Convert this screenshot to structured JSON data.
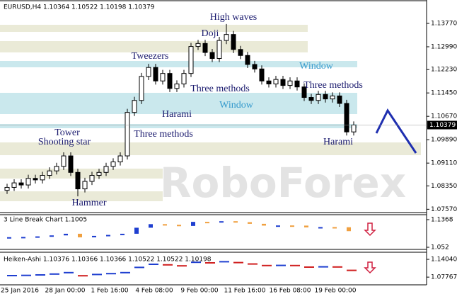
{
  "chart_data": [
    {
      "type": "candlestick",
      "title": "EURUSD,H4 1.10364 1.10522 1.10198 1.10379",
      "open": [
        1.082,
        1.083,
        1.0845,
        1.0838,
        1.086,
        1.0855,
        1.087,
        1.0885,
        1.09,
        1.0935,
        1.088,
        1.0825,
        1.085,
        1.087,
        1.088,
        1.09,
        1.0915,
        1.0935,
        1.108,
        1.112,
        1.12,
        1.123,
        1.1185,
        1.121,
        1.116,
        1.1175,
        1.121,
        1.13,
        1.131,
        1.128,
        1.126,
        1.132,
        1.134,
        1.129,
        1.127,
        1.124,
        1.1225,
        1.1185,
        1.1175,
        1.119,
        1.117,
        1.1185,
        1.1165,
        1.113,
        1.112,
        1.114,
        1.1125,
        1.1135,
        1.111,
        1.1015
      ],
      "high": [
        1.0842,
        1.0857,
        1.0857,
        1.0872,
        1.0872,
        1.0882,
        1.0897,
        1.0912,
        1.0947,
        1.0947,
        1.0892,
        1.0862,
        1.0882,
        1.0892,
        1.0912,
        1.0927,
        1.0947,
        1.1092,
        1.1132,
        1.1212,
        1.1242,
        1.1242,
        1.1222,
        1.1222,
        1.1187,
        1.1222,
        1.1312,
        1.1322,
        1.1322,
        1.1292,
        1.1332,
        1.1375,
        1.1352,
        1.1302,
        1.1282,
        1.1252,
        1.1237,
        1.1197,
        1.1202,
        1.1202,
        1.1197,
        1.1197,
        1.1177,
        1.1142,
        1.1152,
        1.1152,
        1.1147,
        1.1147,
        1.1122,
        1.105
      ],
      "low": [
        1.0808,
        1.0818,
        1.0826,
        1.0826,
        1.0843,
        1.0843,
        1.0858,
        1.0873,
        1.0888,
        1.0868,
        1.08,
        1.0813,
        1.0838,
        1.0858,
        1.0868,
        1.0888,
        1.0903,
        1.0923,
        1.1068,
        1.1108,
        1.1188,
        1.1173,
        1.1173,
        1.1148,
        1.1148,
        1.1163,
        1.1198,
        1.1288,
        1.1268,
        1.1248,
        1.1248,
        1.1308,
        1.1278,
        1.1258,
        1.1228,
        1.1213,
        1.1173,
        1.1163,
        1.1163,
        1.1158,
        1.1158,
        1.1153,
        1.1118,
        1.1108,
        1.1108,
        1.1113,
        1.1113,
        1.1098,
        1.1003,
        1.1003
      ],
      "close": [
        1.083,
        1.0845,
        1.0838,
        1.086,
        1.0855,
        1.087,
        1.0885,
        1.09,
        1.0935,
        1.088,
        1.0825,
        1.085,
        1.087,
        1.088,
        1.09,
        1.0915,
        1.0935,
        1.108,
        1.112,
        1.12,
        1.123,
        1.1185,
        1.121,
        1.116,
        1.1175,
        1.121,
        1.13,
        1.131,
        1.128,
        1.126,
        1.132,
        1.134,
        1.129,
        1.127,
        1.124,
        1.1225,
        1.1185,
        1.1175,
        1.119,
        1.117,
        1.1185,
        1.1165,
        1.113,
        1.112,
        1.114,
        1.1125,
        1.1135,
        1.111,
        1.1015,
        1.1038
      ],
      "last_price": 1.10379,
      "ylim": [
        1.0746,
        1.1455
      ],
      "yticks": [
        {
          "value": 1.1377,
          "label": "1.13770"
        },
        {
          "value": 1.1299,
          "label": "1.12990"
        },
        {
          "value": 1.1223,
          "label": "1.12230"
        },
        {
          "value": 1.1145,
          "label": "1.11450"
        },
        {
          "value": 1.1067,
          "label": "1.10670"
        },
        {
          "value": 1.0989,
          "label": "1.09890"
        },
        {
          "value": 1.0911,
          "label": "1.09110"
        },
        {
          "value": 1.0835,
          "label": "1.08350"
        },
        {
          "value": 1.0757,
          "label": "1.07570"
        }
      ],
      "xlabels": [
        "25 Jan 2016",
        "28 Jan 00:00",
        "1 Feb 16:00",
        "4 Feb 08:00",
        "9 Feb 00:00",
        "11 Feb 16:00",
        "16 Feb 08:00",
        "19 Feb 00:00"
      ],
      "annotations": [
        "High waves",
        "Doji",
        "Tweezers",
        "Window",
        "Three methods",
        "Three methods",
        "Harami",
        "Window",
        "Tower",
        "Shooting star",
        "Three methods",
        "Harami",
        "Hammer"
      ],
      "watermark": "RoboForex"
    },
    {
      "type": "linebreak",
      "title": "3 Line Break Chart 1.1005",
      "values": [
        1.083,
        1.0838,
        1.0855,
        1.0885,
        1.0935,
        1.0825,
        1.087,
        1.09,
        1.0935,
        1.112,
        1.123,
        1.121,
        1.1175,
        1.13,
        1.128,
        1.132,
        1.129,
        1.124,
        1.1185,
        1.119,
        1.1185,
        1.113,
        1.114,
        1.1135,
        1.1015
      ],
      "ylim": [
        1.0455,
        1.152
      ],
      "yticks": [
        1.1368,
        1.052
      ]
    },
    {
      "type": "heikenashi",
      "title": "Heiken-Ashi 1.10376 1.10366 1.10366 1.10522 1.10522 1.10198",
      "values": [
        1.083,
        1.0838,
        1.0855,
        1.0885,
        1.0935,
        1.0825,
        1.087,
        1.09,
        1.0935,
        1.112,
        1.123,
        1.121,
        1.1175,
        1.13,
        1.128,
        1.132,
        1.129,
        1.124,
        1.1185,
        1.119,
        1.1185,
        1.113,
        1.114,
        1.1135,
        1.1015
      ],
      "ylim": [
        1.0505,
        1.1655
      ],
      "yticks": [
        {
          "value": 1.1404,
          "label": "1.14040"
        },
        1.07767
      ]
    }
  ]
}
